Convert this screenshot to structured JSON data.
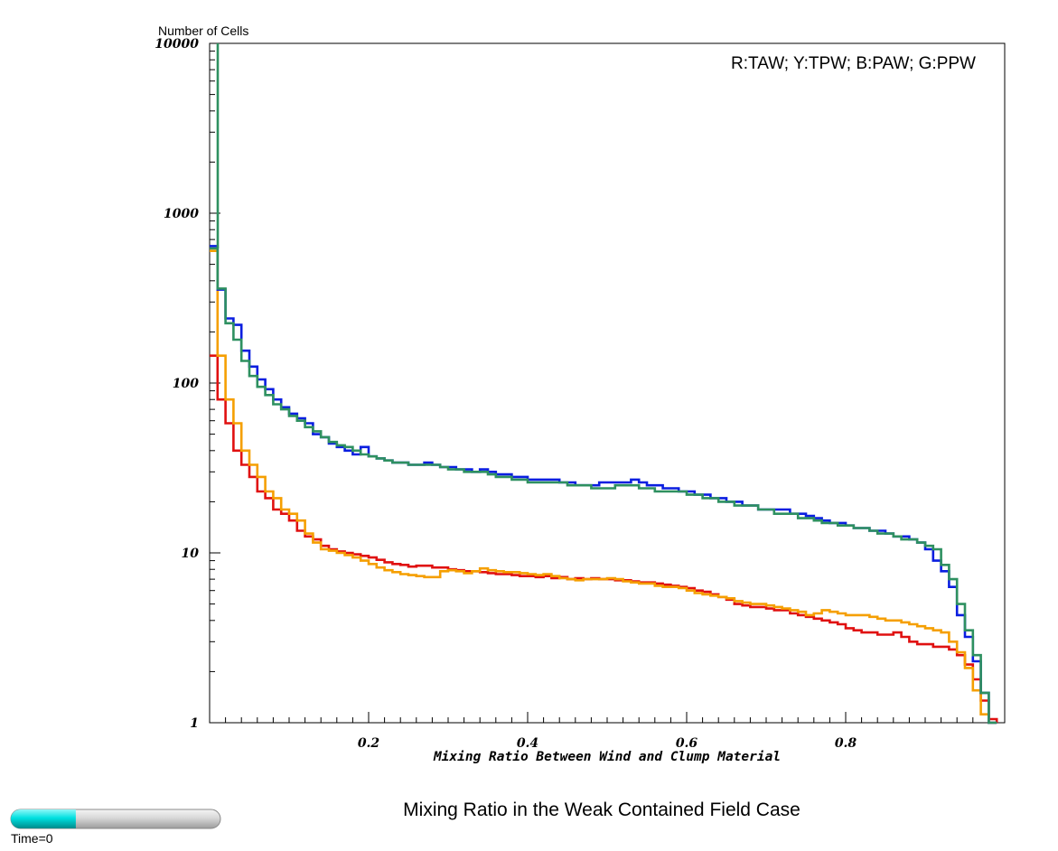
{
  "chart_data": {
    "type": "line",
    "step": true,
    "title": "Mixing Ratio in the Weak Contained Field Case",
    "xlabel": "Mixing Ratio Between Wind and Clump Material",
    "ylabel": "Number of Cells",
    "legend_text": "R:TAW; Y:TPW; B:PAW; G:PPW",
    "legend_position": "top-right",
    "xlim": [
      0,
      1
    ],
    "ylim": [
      1,
      10000
    ],
    "yscale": "log",
    "grid": false,
    "x_ticks": [
      0.2,
      0.4,
      0.6,
      0.8
    ],
    "x_tick_labels": [
      "0.2",
      "0.4",
      "0.6",
      "0.8"
    ],
    "y_ticks": [
      1,
      10,
      100,
      1000,
      10000
    ],
    "y_tick_labels": [
      "1",
      "10",
      "100",
      "1000",
      "10000"
    ],
    "x": [
      0.01,
      0.02,
      0.03,
      0.04,
      0.05,
      0.06,
      0.07,
      0.08,
      0.09,
      0.1,
      0.11,
      0.12,
      0.13,
      0.14,
      0.15,
      0.16,
      0.17,
      0.18,
      0.19,
      0.2,
      0.21,
      0.22,
      0.23,
      0.24,
      0.25,
      0.26,
      0.27,
      0.28,
      0.29,
      0.3,
      0.31,
      0.32,
      0.33,
      0.34,
      0.35,
      0.36,
      0.37,
      0.38,
      0.39,
      0.4,
      0.41,
      0.42,
      0.43,
      0.44,
      0.45,
      0.46,
      0.47,
      0.48,
      0.49,
      0.5,
      0.51,
      0.52,
      0.53,
      0.54,
      0.55,
      0.56,
      0.57,
      0.58,
      0.59,
      0.6,
      0.61,
      0.62,
      0.63,
      0.64,
      0.65,
      0.66,
      0.67,
      0.68,
      0.69,
      0.7,
      0.71,
      0.72,
      0.73,
      0.74,
      0.75,
      0.76,
      0.77,
      0.78,
      0.79,
      0.8,
      0.81,
      0.82,
      0.83,
      0.84,
      0.85,
      0.86,
      0.87,
      0.88,
      0.89,
      0.9,
      0.91,
      0.92,
      0.93,
      0.94,
      0.95,
      0.96,
      0.97,
      0.98,
      0.99
    ],
    "series": [
      {
        "color": "#e01010",
        "values": [
          145,
          80,
          58,
          40,
          33,
          28,
          23,
          21,
          18,
          17,
          15.5,
          13.5,
          12.5,
          12,
          11,
          10.5,
          10.2,
          10,
          9.8,
          9.6,
          9.4,
          9.1,
          8.8,
          8.6,
          8.5,
          8.3,
          8.4,
          8.4,
          8.2,
          8.2,
          8.0,
          7.9,
          7.8,
          7.8,
          7.7,
          7.6,
          7.5,
          7.5,
          7.4,
          7.3,
          7.3,
          7.2,
          7.3,
          7.1,
          7.2,
          7.0,
          7.1,
          7.0,
          7.1,
          7.0,
          7.0,
          6.9,
          6.9,
          6.8,
          6.7,
          6.7,
          6.6,
          6.5,
          6.4,
          6.3,
          6.2,
          6.0,
          5.9,
          5.7,
          5.5,
          5.3,
          5.0,
          4.9,
          4.8,
          4.8,
          4.7,
          4.6,
          4.6,
          4.4,
          4.3,
          4.2,
          4.1,
          4.0,
          3.9,
          3.8,
          3.6,
          3.5,
          3.4,
          3.4,
          3.3,
          3.3,
          3.4,
          3.2,
          3.0,
          2.9,
          2.9,
          2.8,
          2.8,
          2.7,
          2.5,
          2.2,
          1.8,
          1.35,
          1.05
        ]
      },
      {
        "color": "#f59f00",
        "values": [
          600,
          145,
          80,
          58,
          40,
          33,
          28,
          23,
          21,
          18,
          17,
          15.5,
          13,
          11.5,
          10.5,
          10.3,
          10.0,
          9.7,
          9.4,
          9.0,
          8.6,
          8.2,
          7.9,
          7.7,
          7.5,
          7.4,
          7.3,
          7.2,
          7.2,
          7.8,
          7.9,
          7.8,
          7.6,
          7.8,
          8.1,
          7.9,
          7.8,
          7.7,
          7.7,
          7.6,
          7.5,
          7.4,
          7.5,
          7.3,
          7.1,
          7.0,
          6.9,
          7.0,
          7.0,
          7.0,
          7.1,
          7.0,
          6.8,
          6.7,
          6.6,
          6.6,
          6.4,
          6.3,
          6.3,
          6.2,
          6.0,
          5.8,
          5.7,
          5.6,
          5.5,
          5.4,
          5.2,
          5.1,
          5.0,
          5.0,
          4.9,
          4.8,
          4.7,
          4.6,
          4.5,
          4.3,
          4.4,
          4.6,
          4.5,
          4.4,
          4.3,
          4.3,
          4.3,
          4.2,
          4.1,
          4.0,
          4.0,
          3.9,
          3.8,
          3.7,
          3.6,
          3.5,
          3.4,
          3.0,
          2.6,
          2.1,
          1.55,
          1.12,
          1.0
        ]
      },
      {
        "color": "#0a1ee0",
        "values": [
          640,
          355,
          240,
          220,
          155,
          125,
          105,
          92,
          80,
          72,
          66,
          62,
          58,
          50,
          48,
          44,
          42,
          40,
          38,
          42,
          37,
          36,
          35,
          34,
          34,
          33,
          33,
          34,
          33,
          32,
          32,
          31,
          31,
          30,
          31,
          30,
          29,
          29,
          28,
          28,
          27,
          27,
          27,
          27,
          26,
          26,
          25,
          25,
          25,
          26,
          26,
          26,
          26,
          27,
          26,
          25,
          25,
          24,
          24,
          23,
          23,
          22,
          22,
          21,
          21,
          20,
          20,
          19,
          19,
          18,
          18,
          18,
          18,
          17,
          17,
          16.5,
          16,
          15.5,
          15,
          15,
          14.5,
          14,
          14,
          13.5,
          13.5,
          13,
          12.5,
          12.5,
          12,
          11.5,
          10.5,
          9.0,
          7.8,
          6.3,
          4.3,
          3.2,
          2.3,
          1.5,
          1.0
        ]
      },
      {
        "color": "#2e9060",
        "values": [
          620,
          360,
          225,
          180,
          135,
          110,
          95,
          85,
          75,
          70,
          64,
          60,
          55,
          52,
          48,
          45,
          43,
          42,
          40,
          38,
          37,
          36,
          35,
          34,
          34,
          33,
          33,
          33,
          33,
          32,
          31,
          31,
          30,
          30,
          30,
          29,
          28,
          28,
          27,
          27,
          26,
          26,
          26,
          26,
          26,
          25,
          25,
          25,
          24,
          24,
          24,
          25,
          25,
          25,
          24,
          24,
          23,
          23,
          23,
          23,
          22,
          22,
          21,
          21,
          20,
          20,
          19,
          19,
          19,
          18,
          18,
          17,
          17,
          17,
          16,
          16,
          15.5,
          15,
          15,
          14.5,
          14.5,
          14,
          14,
          13.5,
          13,
          13,
          12.5,
          12,
          12,
          11.5,
          11,
          10.5,
          8.5,
          7,
          5,
          3.5,
          2.5,
          1.5,
          1.0
        ]
      }
    ],
    "spike": {
      "x": 0.01,
      "y": 10000
    }
  },
  "time_slider": {
    "label": "Time=0",
    "fill_fraction": 0.31
  }
}
